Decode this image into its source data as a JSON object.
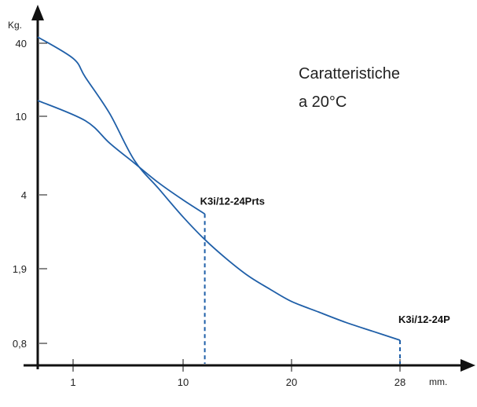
{
  "chart_data": {
    "type": "line",
    "title": "",
    "ylabel": "Kg.",
    "xlabel": "mm.",
    "annotation": [
      "Caratteristiche",
      "a 20°C"
    ],
    "x_ticks": [
      {
        "value": 1,
        "label": "1"
      },
      {
        "value": 10,
        "label": "10"
      },
      {
        "value": 20,
        "label": "20"
      },
      {
        "value": 28,
        "label": "28"
      }
    ],
    "y_ticks": [
      {
        "value": 40,
        "label": "40"
      },
      {
        "value": 10,
        "label": "10"
      },
      {
        "value": 4,
        "label": "4"
      },
      {
        "value": 1.9,
        "label": "1,9"
      },
      {
        "value": 0.8,
        "label": "0,8"
      }
    ],
    "xlim": [
      -1,
      36
    ],
    "grid": false,
    "colors": {
      "series": "#1f5fa8",
      "axis": "#111111",
      "drop": "#1f5fa8"
    },
    "series": [
      {
        "name": "K3i/12-24Prts",
        "x": [
          0,
          2,
          4,
          6,
          8,
          10,
          12
        ],
        "y": [
          13.5,
          9.5,
          7.3,
          5.8,
          4.6,
          3.8,
          3.3
        ],
        "end_x": 12
      },
      {
        "name": "K3i/12-24P",
        "x": [
          0,
          1,
          2,
          4,
          6,
          8,
          10,
          12,
          14,
          16,
          18,
          20,
          22,
          24,
          26,
          28
        ],
        "y": [
          45,
          30,
          21,
          10.5,
          6.0,
          4.3,
          3.2,
          2.55,
          2.1,
          1.75,
          1.5,
          1.3,
          1.15,
          1.02,
          0.92,
          0.83
        ],
        "end_x": 28
      }
    ]
  }
}
